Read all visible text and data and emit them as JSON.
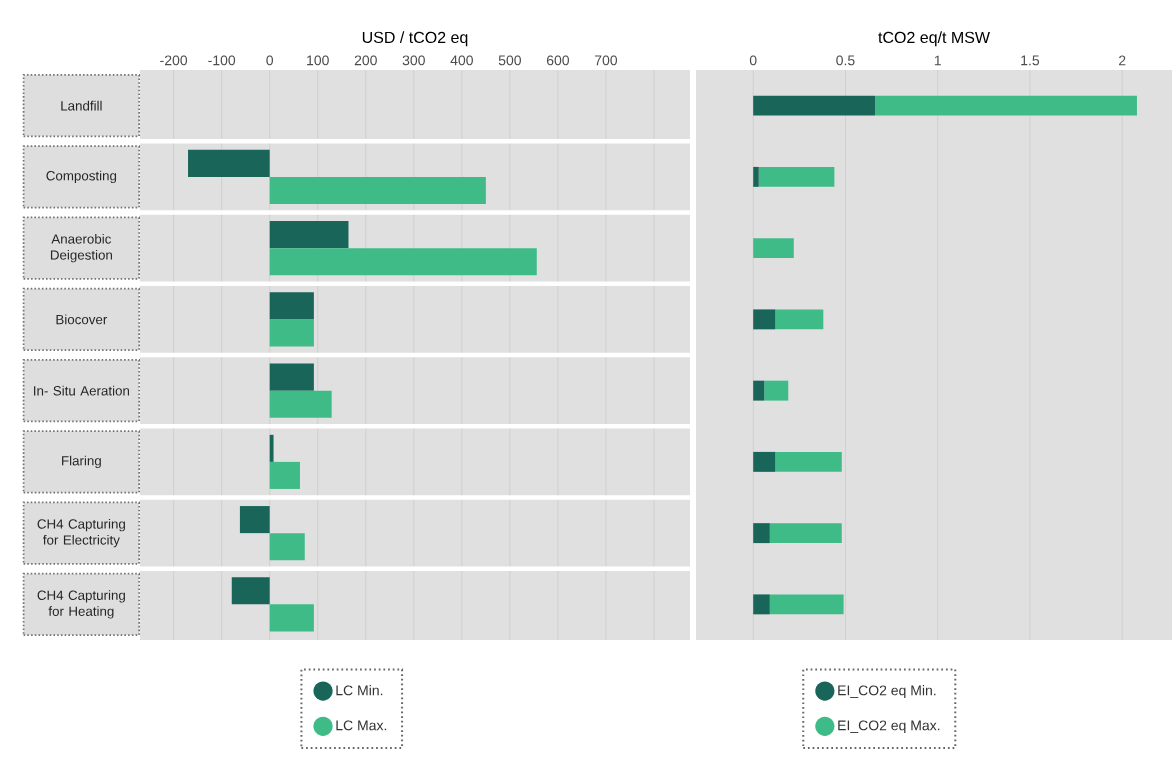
{
  "chart_data": [
    {
      "type": "bar",
      "orientation": "horizontal",
      "xlabel": "USD / tCO2 eq",
      "categories": [
        "Landfill",
        "Composting",
        "Anaerobic Deigestion",
        "Biocover",
        "In- Situ Aeration",
        "Flaring",
        "CH4 Capturing for Electricity",
        "CH4 Capturing for Heating"
      ],
      "series": [
        {
          "name": "LC Min.",
          "color": "#1a6559",
          "values": [
            null,
            -170,
            164,
            92,
            92,
            8,
            -62,
            -79
          ]
        },
        {
          "name": "LC Max.",
          "color": "#3fbb88",
          "values": [
            null,
            450,
            556,
            92,
            129,
            63,
            73,
            92
          ]
        }
      ],
      "xlim": [
        -270,
        875
      ],
      "xticks": [
        -200,
        -100,
        0,
        100,
        200,
        300,
        400,
        500,
        600,
        700,
        {
          "value": 800,
          "label": null
        }
      ],
      "grid": "x",
      "legend": "bottom"
    },
    {
      "type": "bar",
      "orientation": "horizontal",
      "stacked": true,
      "xlabel": "tCO2 eq/t MSW",
      "categories": [
        null,
        null,
        null,
        null,
        null,
        null,
        null,
        null
      ],
      "series": [
        {
          "name": "EI_CO2 eq Min.",
          "color": "#1a6559",
          "values": [
            0.66,
            0.03,
            0,
            0.12,
            0.06,
            0.12,
            0.09,
            0.09
          ]
        },
        {
          "name": "EI_CO2 eq Max.",
          "color": "#3fbb88",
          "values": [
            1.42,
            0.41,
            0.22,
            0.26,
            0.13,
            0.36,
            0.39,
            0.4
          ]
        }
      ],
      "xlim": [
        -0.31,
        2.27
      ],
      "xticks": [
        0,
        0.5,
        1,
        1.5,
        2
      ],
      "grid": "x",
      "legend": "bottom",
      "tick_labels": "x"
    }
  ]
}
